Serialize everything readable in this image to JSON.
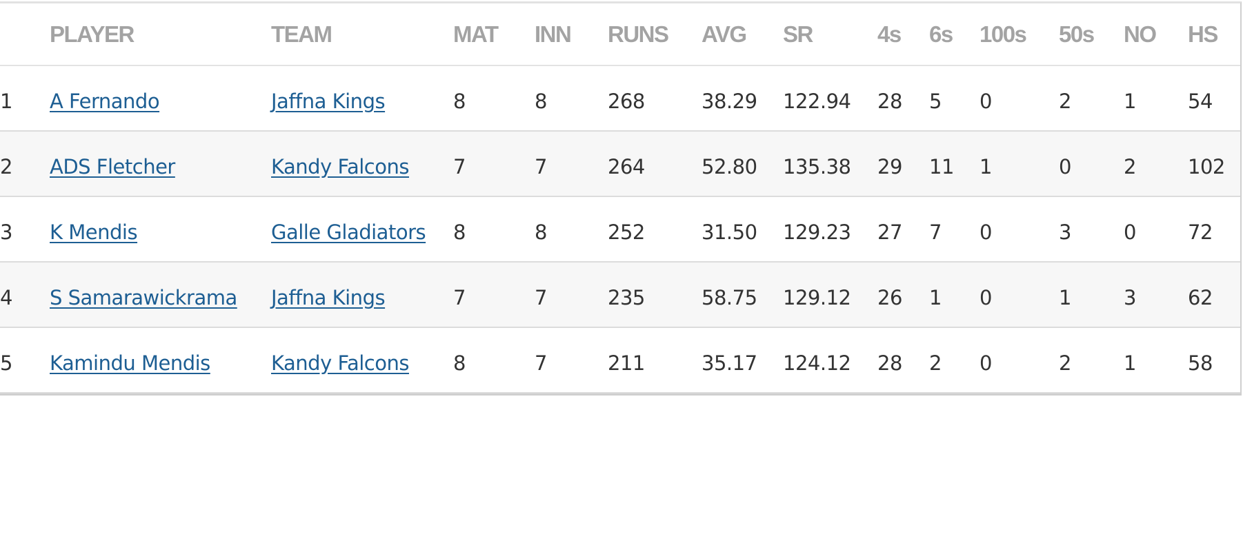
{
  "table": {
    "headers": [
      "",
      "PLAYER",
      "TEAM",
      "MAT",
      "INN",
      "RUNS",
      "AVG",
      "SR",
      "4s",
      "6s",
      "100s",
      "50s",
      "NO",
      "HS"
    ],
    "rows": [
      {
        "rank": "1",
        "player": "A Fernando",
        "team": "Jaffna Kings",
        "mat": "8",
        "inn": "8",
        "runs": "268",
        "avg": "38.29",
        "sr": "122.94",
        "fours": "28",
        "sixes": "5",
        "hundreds": "0",
        "fifties": "2",
        "no": "1",
        "hs": "54"
      },
      {
        "rank": "2",
        "player": "ADS Fletcher",
        "team": "Kandy Falcons",
        "mat": "7",
        "inn": "7",
        "runs": "264",
        "avg": "52.80",
        "sr": "135.38",
        "fours": "29",
        "sixes": "11",
        "hundreds": "1",
        "fifties": "0",
        "no": "2",
        "hs": "102"
      },
      {
        "rank": "3",
        "player": "K Mendis",
        "team": "Galle Gladiators",
        "mat": "8",
        "inn": "8",
        "runs": "252",
        "avg": "31.50",
        "sr": "129.23",
        "fours": "27",
        "sixes": "7",
        "hundreds": "0",
        "fifties": "3",
        "no": "0",
        "hs": "72"
      },
      {
        "rank": "4",
        "player": "S Samarawickrama",
        "team": "Jaffna Kings",
        "mat": "7",
        "inn": "7",
        "runs": "235",
        "avg": "58.75",
        "sr": "129.12",
        "fours": "26",
        "sixes": "1",
        "hundreds": "0",
        "fifties": "1",
        "no": "3",
        "hs": "62"
      },
      {
        "rank": "5",
        "player": "Kamindu Mendis",
        "team": "Kandy Falcons",
        "mat": "8",
        "inn": "7",
        "runs": "211",
        "avg": "35.17",
        "sr": "124.12",
        "fours": "28",
        "sixes": "2",
        "hundreds": "0",
        "fifties": "2",
        "no": "1",
        "hs": "58"
      }
    ]
  },
  "colors": {
    "header_text": "#a3a3a3",
    "link": "#1d5e93",
    "alt_row": "#f7f7f7"
  }
}
